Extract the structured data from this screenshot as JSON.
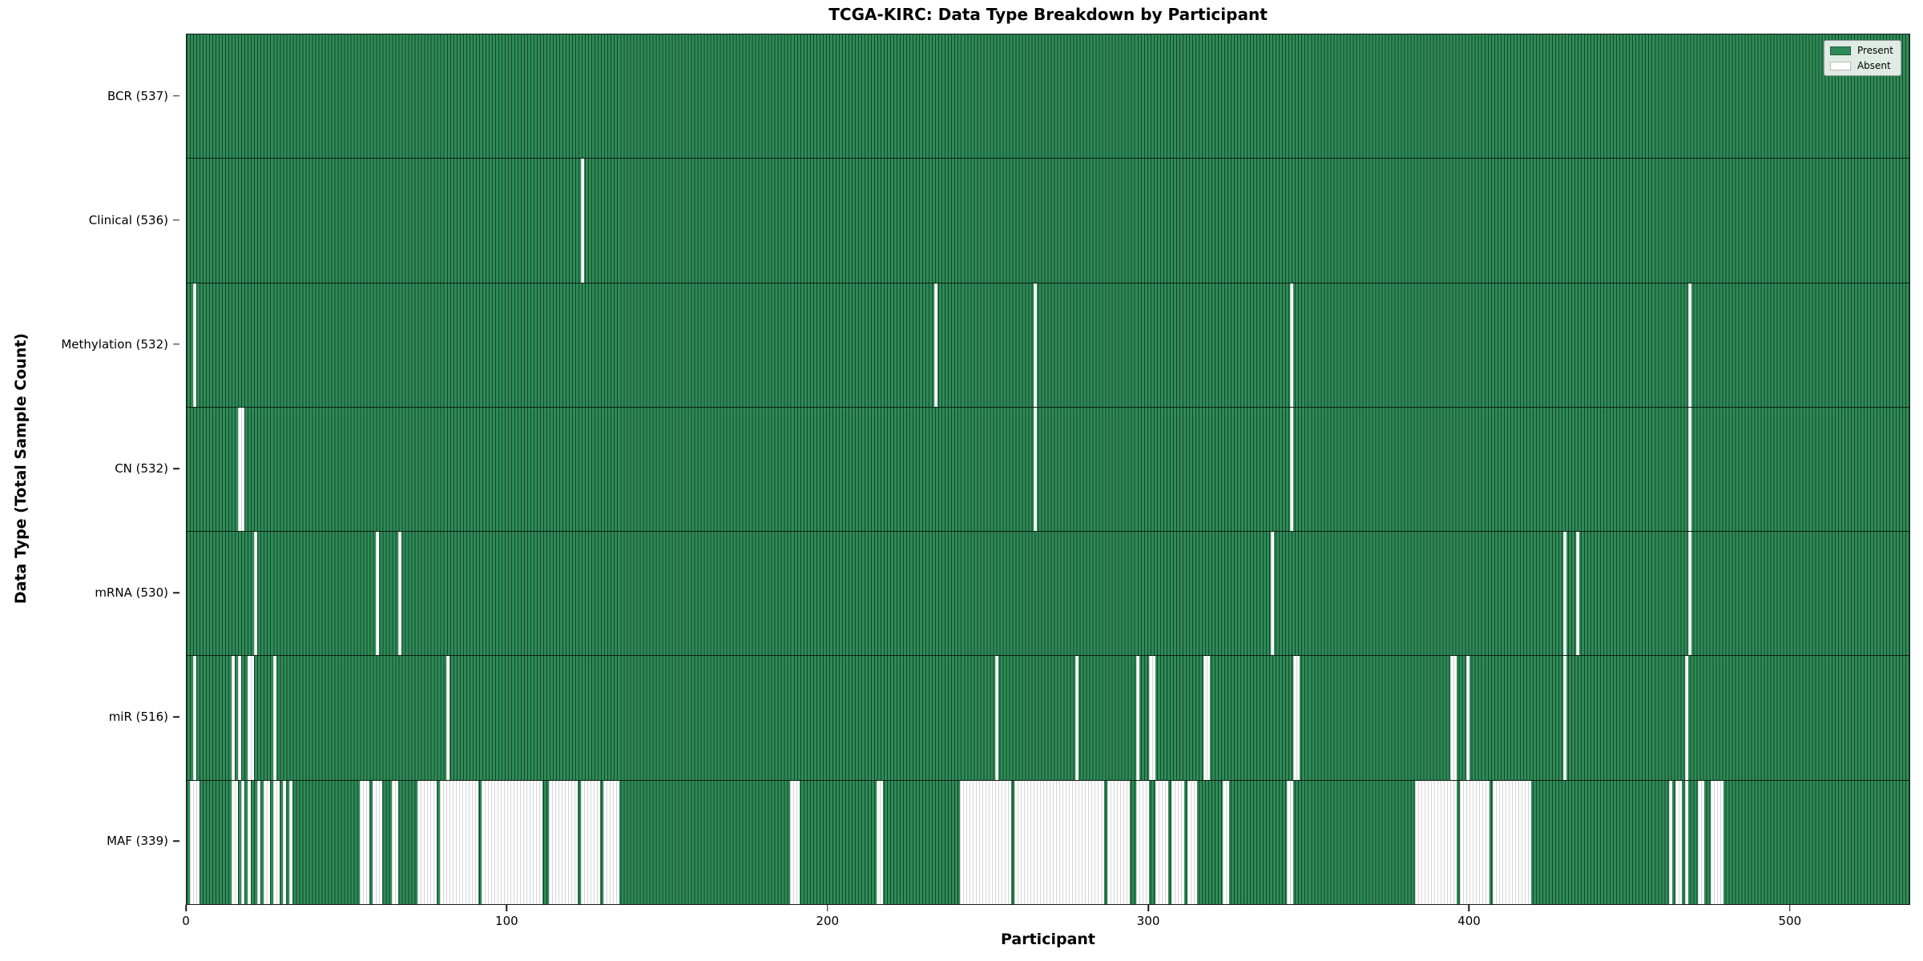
{
  "title": "TCGA-KIRC: Data Type Breakdown by Participant",
  "axes": {
    "x_label": "Participant",
    "y_label": "Data Type (Total Sample Count)"
  },
  "legend": {
    "present_label": "Present",
    "absent_label": "Absent"
  },
  "colors": {
    "present": "#2e8b57",
    "absent": "#ffffff",
    "bar_edge": "#1f5e3c"
  },
  "chart_data": {
    "type": "heatmap",
    "title": "TCGA-KIRC: Data Type Breakdown by Participant",
    "xlabel": "Participant",
    "ylabel": "Data Type (Total Sample Count)",
    "x_ticks": [
      0,
      100,
      200,
      300,
      400,
      500
    ],
    "xlim": [
      0,
      537
    ],
    "n_participants": 537,
    "legend_position": "upper right",
    "grid": false,
    "rows": [
      {
        "name": "bcr",
        "label": "BCR (537)",
        "data_type": "BCR",
        "total": 537,
        "absent_ranges": []
      },
      {
        "name": "clinical",
        "label": "Clinical (536)",
        "data_type": "Clinical",
        "total": 536,
        "absent_ranges": [
          [
            123,
            123
          ]
        ]
      },
      {
        "name": "methylation",
        "label": "Methylation (532)",
        "data_type": "Methylation",
        "total": 532,
        "absent_ranges": [
          [
            2,
            2
          ],
          [
            233,
            233
          ],
          [
            264,
            264
          ],
          [
            344,
            344
          ],
          [
            468,
            468
          ]
        ]
      },
      {
        "name": "cn",
        "label": "CN (532)",
        "data_type": "CN",
        "total": 532,
        "absent_ranges": [
          [
            16,
            17
          ],
          [
            264,
            264
          ],
          [
            344,
            344
          ],
          [
            468,
            468
          ]
        ]
      },
      {
        "name": "mrna",
        "label": "mRNA (530)",
        "data_type": "mRNA",
        "total": 530,
        "absent_ranges": [
          [
            21,
            21
          ],
          [
            59,
            59
          ],
          [
            66,
            66
          ],
          [
            338,
            338
          ],
          [
            429,
            429
          ],
          [
            433,
            433
          ],
          [
            468,
            468
          ]
        ]
      },
      {
        "name": "mir",
        "label": "miR (516)",
        "data_type": "miR",
        "total": 516,
        "absent_ranges": [
          [
            2,
            2
          ],
          [
            14,
            14
          ],
          [
            16,
            16
          ],
          [
            19,
            20
          ],
          [
            27,
            27
          ],
          [
            81,
            81
          ],
          [
            252,
            252
          ],
          [
            277,
            277
          ],
          [
            296,
            296
          ],
          [
            300,
            301
          ],
          [
            317,
            318
          ],
          [
            345,
            346
          ],
          [
            394,
            395
          ],
          [
            399,
            399
          ],
          [
            429,
            429
          ],
          [
            467,
            467
          ]
        ]
      },
      {
        "name": "maf",
        "label": "MAF (339)",
        "data_type": "MAF",
        "total": 339,
        "absent_ranges": [
          [
            1,
            3
          ],
          [
            14,
            15
          ],
          [
            17,
            17
          ],
          [
            19,
            19
          ],
          [
            22,
            22
          ],
          [
            24,
            25
          ],
          [
            27,
            28
          ],
          [
            30,
            30
          ],
          [
            32,
            32
          ],
          [
            54,
            56
          ],
          [
            58,
            60
          ],
          [
            64,
            65
          ],
          [
            72,
            77
          ],
          [
            79,
            90
          ],
          [
            92,
            110
          ],
          [
            113,
            121
          ],
          [
            123,
            128
          ],
          [
            130,
            134
          ],
          [
            188,
            190
          ],
          [
            215,
            216
          ],
          [
            241,
            256
          ],
          [
            258,
            285
          ],
          [
            287,
            293
          ],
          [
            296,
            299
          ],
          [
            302,
            305
          ],
          [
            307,
            310
          ],
          [
            312,
            314
          ],
          [
            323,
            324
          ],
          [
            343,
            344
          ],
          [
            383,
            395
          ],
          [
            397,
            405
          ],
          [
            407,
            418
          ],
          [
            462,
            462
          ],
          [
            464,
            465
          ],
          [
            467,
            467
          ],
          [
            471,
            472
          ],
          [
            475,
            478
          ]
        ]
      }
    ]
  }
}
